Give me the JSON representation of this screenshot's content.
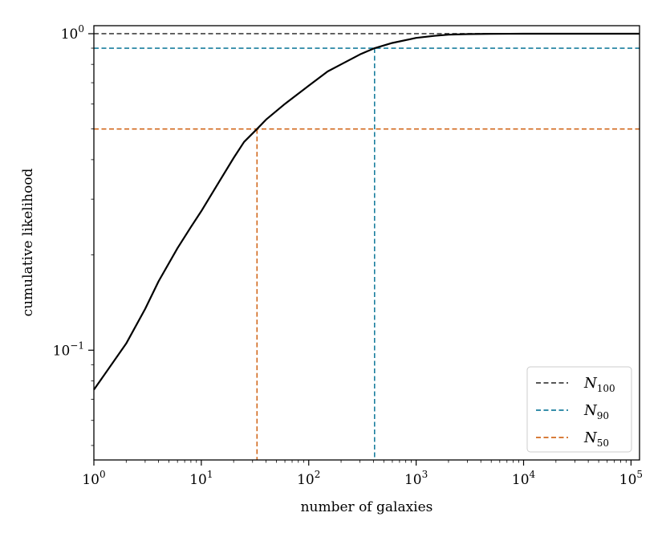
{
  "chart_data": {
    "type": "line",
    "xlabel": "number of galaxies",
    "ylabel": "cumulative likelihood",
    "xscale": "log",
    "yscale": "log",
    "xlim": [
      1,
      120000
    ],
    "ylim": [
      0.045,
      1.06
    ],
    "xticks": [
      {
        "value": 1,
        "base": "10",
        "exp": "0"
      },
      {
        "value": 10,
        "base": "10",
        "exp": "1"
      },
      {
        "value": 100,
        "base": "10",
        "exp": "2"
      },
      {
        "value": 1000,
        "base": "10",
        "exp": "3"
      },
      {
        "value": 10000,
        "base": "10",
        "exp": "4"
      },
      {
        "value": 100000,
        "base": "10",
        "exp": "5"
      }
    ],
    "yticks": [
      {
        "value": 0.1,
        "base": "10",
        "exp": "−1"
      },
      {
        "value": 1,
        "base": "10",
        "exp": "0"
      }
    ],
    "series": [
      {
        "name": "",
        "color": "#000000",
        "style": "solid",
        "x": [
          1,
          2,
          3,
          4,
          6,
          8,
          10,
          15,
          20,
          25,
          33,
          40,
          60,
          100,
          150,
          200,
          300,
          410,
          600,
          1000,
          1500,
          2000,
          3000,
          5000,
          10000,
          120000
        ],
        "y": [
          0.075,
          0.105,
          0.135,
          0.165,
          0.21,
          0.245,
          0.275,
          0.345,
          0.405,
          0.455,
          0.5,
          0.535,
          0.6,
          0.685,
          0.76,
          0.8,
          0.86,
          0.9,
          0.935,
          0.97,
          0.985,
          0.993,
          0.997,
          0.999,
          1.0,
          1.0
        ]
      }
    ],
    "reference_lines": [
      {
        "label": "N",
        "subscript": "100",
        "color": "#404040",
        "y": 1.0,
        "x": null
      },
      {
        "label": "N",
        "subscript": "90",
        "color": "#1a7f9e",
        "y": 0.9,
        "x": 410
      },
      {
        "label": "N",
        "subscript": "50",
        "color": "#d2691e",
        "y": 0.5,
        "x": 33
      }
    ],
    "legend": {
      "placement": "lower-right"
    },
    "grid": false
  }
}
